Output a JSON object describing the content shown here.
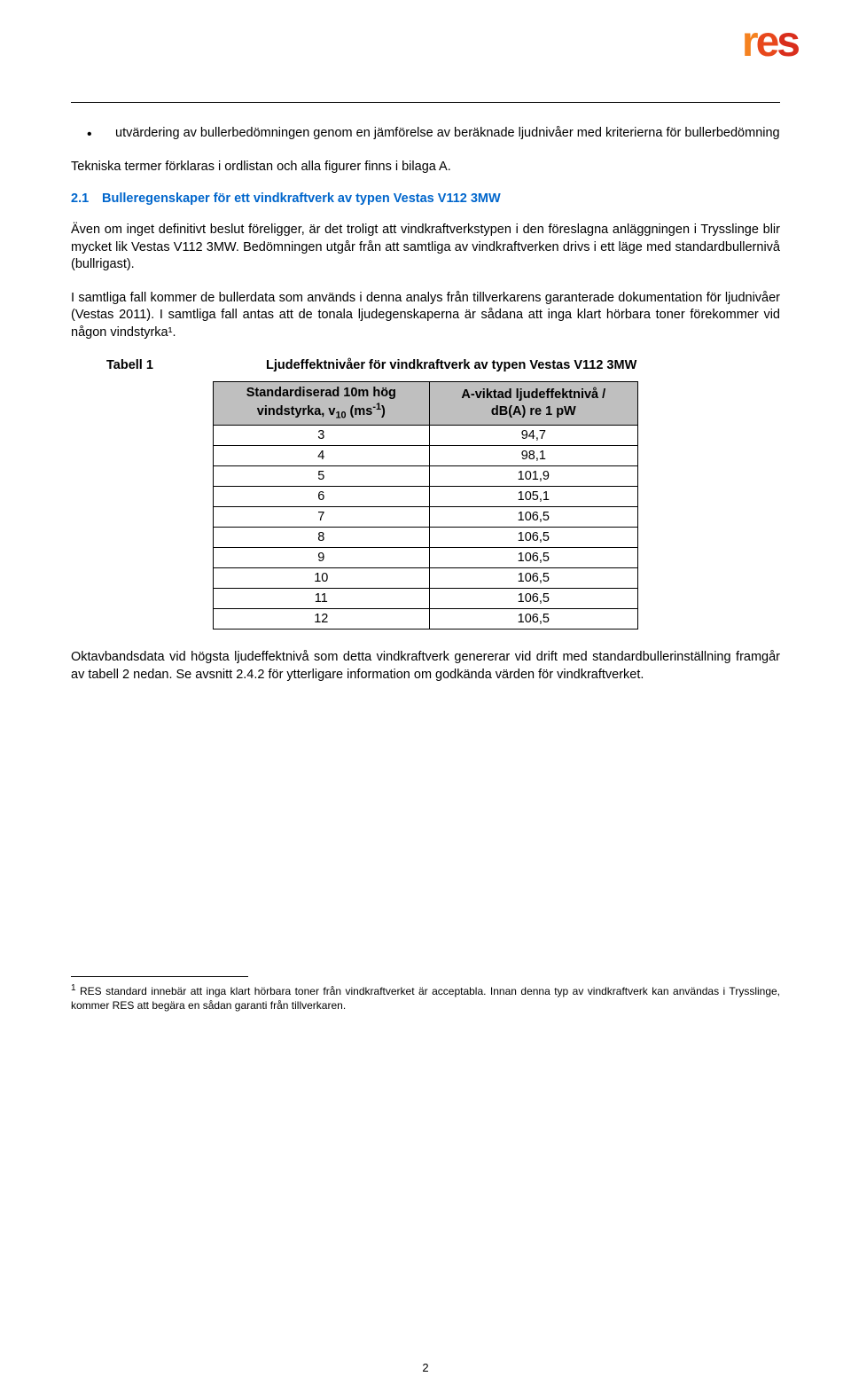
{
  "logo": {
    "r": "r",
    "e": "e",
    "s": "s"
  },
  "bullet": {
    "text": "utvärdering av bullerbedömningen genom en jämförelse av beräknade ljudnivåer med kriterierna för bullerbedömning"
  },
  "p1": "Tekniska termer förklaras i ordlistan och alla figurer finns i bilaga A.",
  "section": {
    "num": "2.1",
    "title": "Bulleregenskaper för ett vindkraftverk av typen Vestas V112 3MW"
  },
  "p2": "Även om inget definitivt beslut föreligger, är det troligt att vindkraftverkstypen i den föreslagna anläggningen i Trysslinge blir mycket lik Vestas V112 3MW. Bedömningen utgår från att samtliga av vindkraftverken drivs i ett läge med standardbullernivå (bullrigast).",
  "p3": "I samtliga fall kommer de bullerdata som används i denna analys från tillverkarens garanterade dokumentation för ljudnivåer (Vestas 2011). I samtliga fall antas att de tonala ljudegenskaperna är sådana att inga klart hörbara toner förekommer vid någon vindstyrka¹.",
  "table": {
    "label": "Tabell 1",
    "caption": "Ljudeffektnivåer för vindkraftverk av typen Vestas V112 3MW",
    "header1_line1": "Standardiserad 10m hög",
    "header1_line2": "vindstyrka, v",
    "header1_sub": "10",
    "header1_unit": " (ms",
    "header1_sup": "-1",
    "header1_close": ")",
    "header2_line1": "A-viktad ljudeffektnivå /",
    "header2_line2": "dB(A) re 1 pW",
    "rows": [
      {
        "a": "3",
        "b": "94,7"
      },
      {
        "a": "4",
        "b": "98,1"
      },
      {
        "a": "5",
        "b": "101,9"
      },
      {
        "a": "6",
        "b": "105,1"
      },
      {
        "a": "7",
        "b": "106,5"
      },
      {
        "a": "8",
        "b": "106,5"
      },
      {
        "a": "9",
        "b": "106,5"
      },
      {
        "a": "10",
        "b": "106,5"
      },
      {
        "a": "11",
        "b": "106,5"
      },
      {
        "a": "12",
        "b": "106,5"
      }
    ]
  },
  "p4": "Oktavbandsdata vid högsta ljudeffektnivå som detta vindkraftverk genererar vid drift med standardbullerinställning framgår av tabell 2 nedan. Se avsnitt 2.4.2 för ytterligare information om godkända värden för vindkraftverket.",
  "footnote": {
    "marker": "1",
    "text": " RES standard innebär att inga klart hörbara toner från vindkraftverket är acceptabla. Innan denna typ av vindkraftverk kan användas i Trysslinge, kommer RES att begära en sådan garanti från tillverkaren."
  },
  "page_number": "2"
}
